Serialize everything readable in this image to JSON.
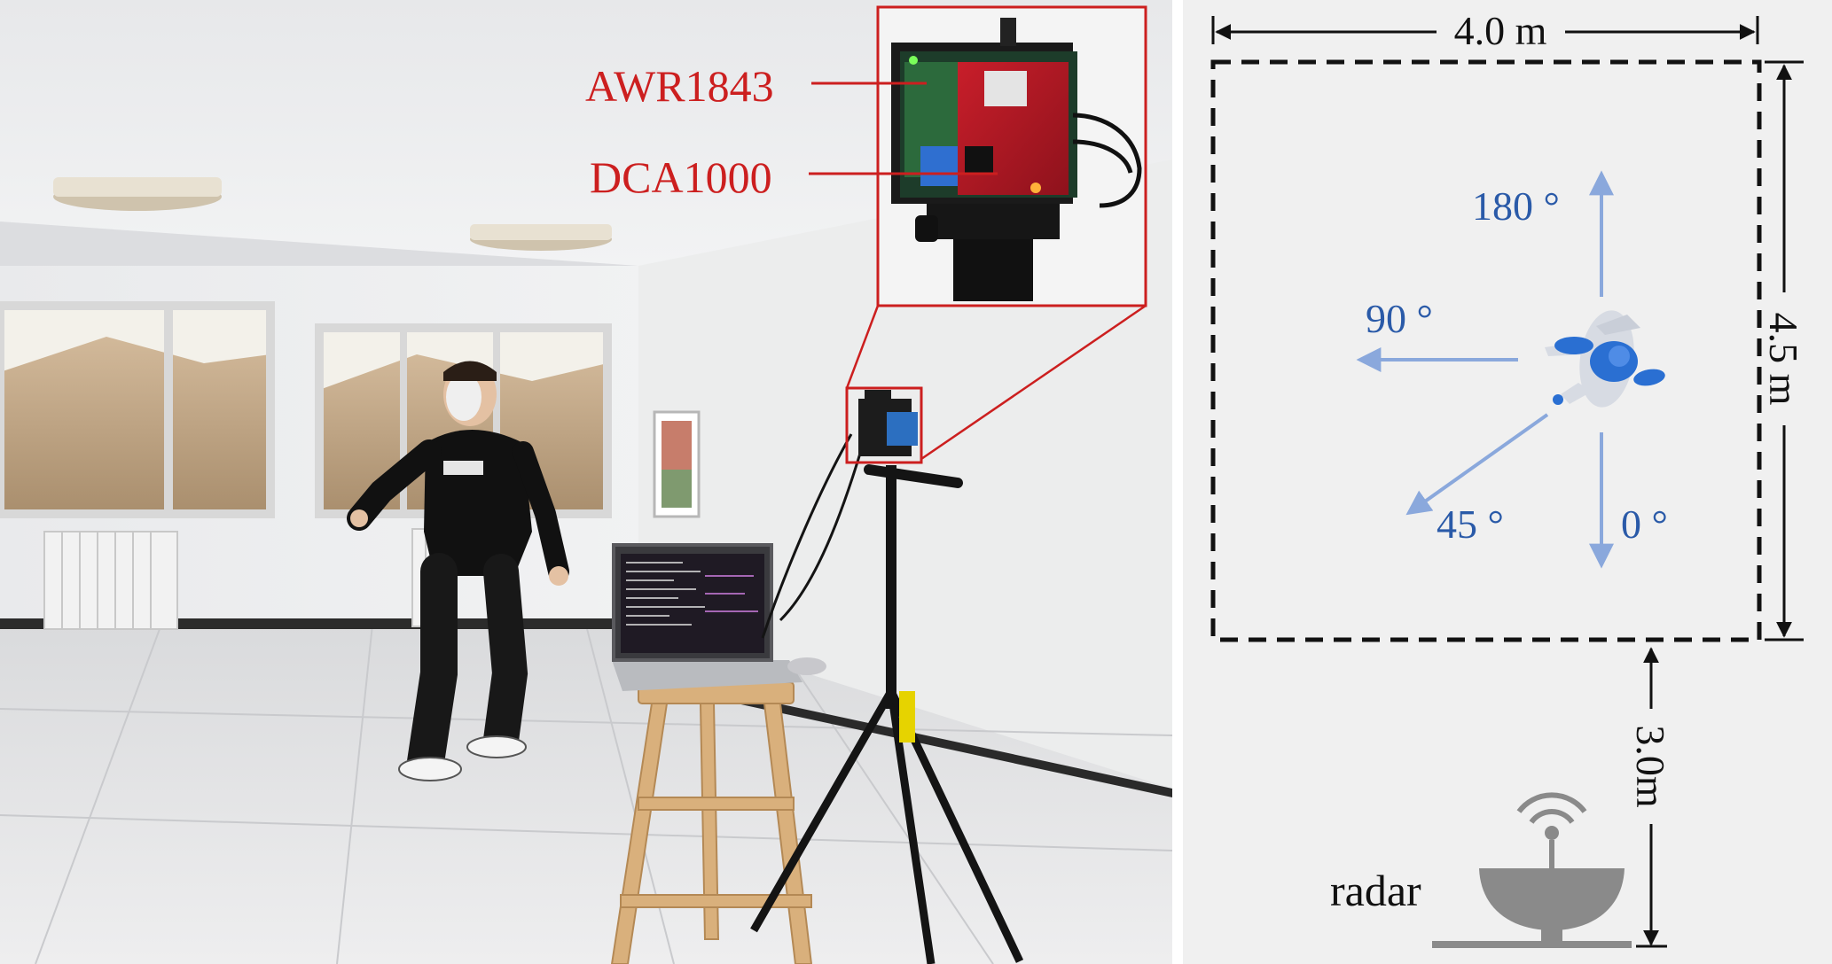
{
  "photo_panel": {
    "callouts": {
      "board_1": "AWR1843",
      "board_2": "DCA1000"
    },
    "callout_color": "#cc1f1f"
  },
  "layout_panel": {
    "width_label": "4.0 m",
    "depth_label": "4.5 m",
    "distance_label": "3.0m",
    "radar_label": "radar",
    "angles": {
      "a180": "180 °",
      "a90": "90 °",
      "a45": "45 °",
      "a0": "0 °"
    },
    "angle_color": "#2a5aa8",
    "arrow_color": "#8aa8dc"
  }
}
